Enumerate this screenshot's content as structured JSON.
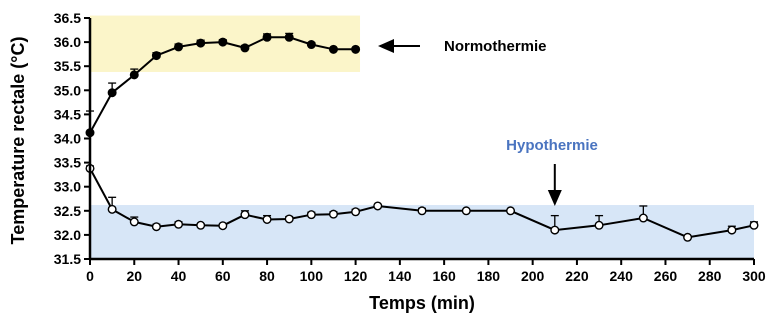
{
  "chart_data": {
    "type": "line",
    "xlabel": "Temps (min)",
    "ylabel": "Temperature rectale (°C)",
    "xlim": [
      0,
      300
    ],
    "ylim": [
      31.5,
      36.5
    ],
    "x_ticks": [
      "0",
      "20",
      "40",
      "60",
      "80",
      "100",
      "120",
      "140",
      "160",
      "180",
      "200",
      "220",
      "240",
      "260",
      "280",
      "300"
    ],
    "y_ticks": [
      "31.5",
      "32.0",
      "32.5",
      "33.0",
      "33.5",
      "34.0",
      "34.5",
      "35.0",
      "35.5",
      "36.0",
      "36.5"
    ],
    "grid": false,
    "series": [
      {
        "name": "Normothermie",
        "marker": "filled-circle",
        "x": [
          0,
          10,
          20,
          30,
          40,
          50,
          60,
          70,
          80,
          90,
          100,
          110,
          120
        ],
        "y": [
          34.12,
          34.95,
          35.32,
          35.72,
          35.9,
          35.98,
          36.0,
          35.88,
          36.1,
          36.1,
          35.95,
          35.85,
          35.85
        ],
        "error_upper": [
          0.45,
          0.2,
          0.12,
          0.06,
          0.06,
          0.06,
          0.05,
          0.05,
          0.07,
          0.08,
          0.04,
          0.03,
          0.03
        ]
      },
      {
        "name": "Hypothermie",
        "marker": "open-circle",
        "x": [
          0,
          10,
          20,
          30,
          40,
          50,
          60,
          70,
          80,
          90,
          100,
          110,
          120,
          130,
          150,
          170,
          190,
          210,
          230,
          250,
          270,
          290,
          300
        ],
        "y": [
          33.38,
          32.53,
          32.27,
          32.17,
          32.22,
          32.2,
          32.19,
          32.42,
          32.32,
          32.33,
          32.42,
          32.43,
          32.48,
          32.6,
          32.5,
          32.5,
          32.5,
          32.1,
          32.2,
          32.35,
          31.95,
          32.1,
          32.2
        ],
        "error_upper": [
          0.05,
          0.25,
          0.1,
          0.05,
          0.05,
          0.03,
          0.03,
          0.08,
          0.08,
          0.05,
          0.05,
          0.05,
          0.05,
          0.02,
          0.05,
          0.02,
          0.02,
          0.3,
          0.2,
          0.25,
          0.02,
          0.08,
          0.07
        ]
      }
    ],
    "bands": [
      {
        "name": "normothermie-band",
        "x": [
          0,
          122
        ],
        "y": [
          35.38,
          36.55
        ],
        "color": "#fbf5c9"
      },
      {
        "name": "hypothermie-band",
        "x": [
          0,
          300
        ],
        "y": [
          31.5,
          32.62
        ],
        "color": "#d7e6f7"
      }
    ],
    "annotations": [
      {
        "text": "Normothermie",
        "color": "#000000",
        "arrow": "left"
      },
      {
        "text": "Hypothermie",
        "color": "#4a74c0",
        "arrow": "down",
        "arrow_x": 210
      }
    ]
  }
}
